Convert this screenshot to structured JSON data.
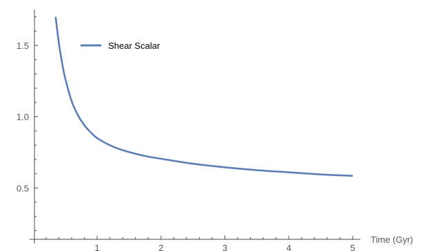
{
  "chart_data": {
    "type": "line",
    "title": "",
    "xlabel": "Time (Gyr)",
    "ylabel": "",
    "xlim": [
      0,
      5.2
    ],
    "ylim": [
      0.14,
      1.75
    ],
    "x_ticks": [
      1,
      2,
      3,
      4,
      5
    ],
    "x_tick_labels": [
      "1",
      "2",
      "3",
      "4",
      "5"
    ],
    "y_ticks": [
      0.5,
      1.0,
      1.5
    ],
    "y_tick_labels": [
      "0.5",
      "1.0",
      "1.5"
    ],
    "grid": false,
    "legend": "top-left",
    "series": [
      {
        "name": "Shear Scalar",
        "color": "#5b7fb5",
        "x": [
          0.35,
          0.4,
          0.45,
          0.5,
          0.6,
          0.7,
          0.8,
          0.9,
          1.0,
          1.2,
          1.4,
          1.6,
          1.8,
          2.0,
          2.5,
          3.0,
          3.5,
          4.0,
          4.5,
          5.0
        ],
        "y": [
          1.7,
          1.52,
          1.38,
          1.27,
          1.11,
          1.01,
          0.94,
          0.89,
          0.85,
          0.8,
          0.765,
          0.74,
          0.72,
          0.705,
          0.67,
          0.645,
          0.625,
          0.61,
          0.595,
          0.585
        ]
      }
    ]
  }
}
